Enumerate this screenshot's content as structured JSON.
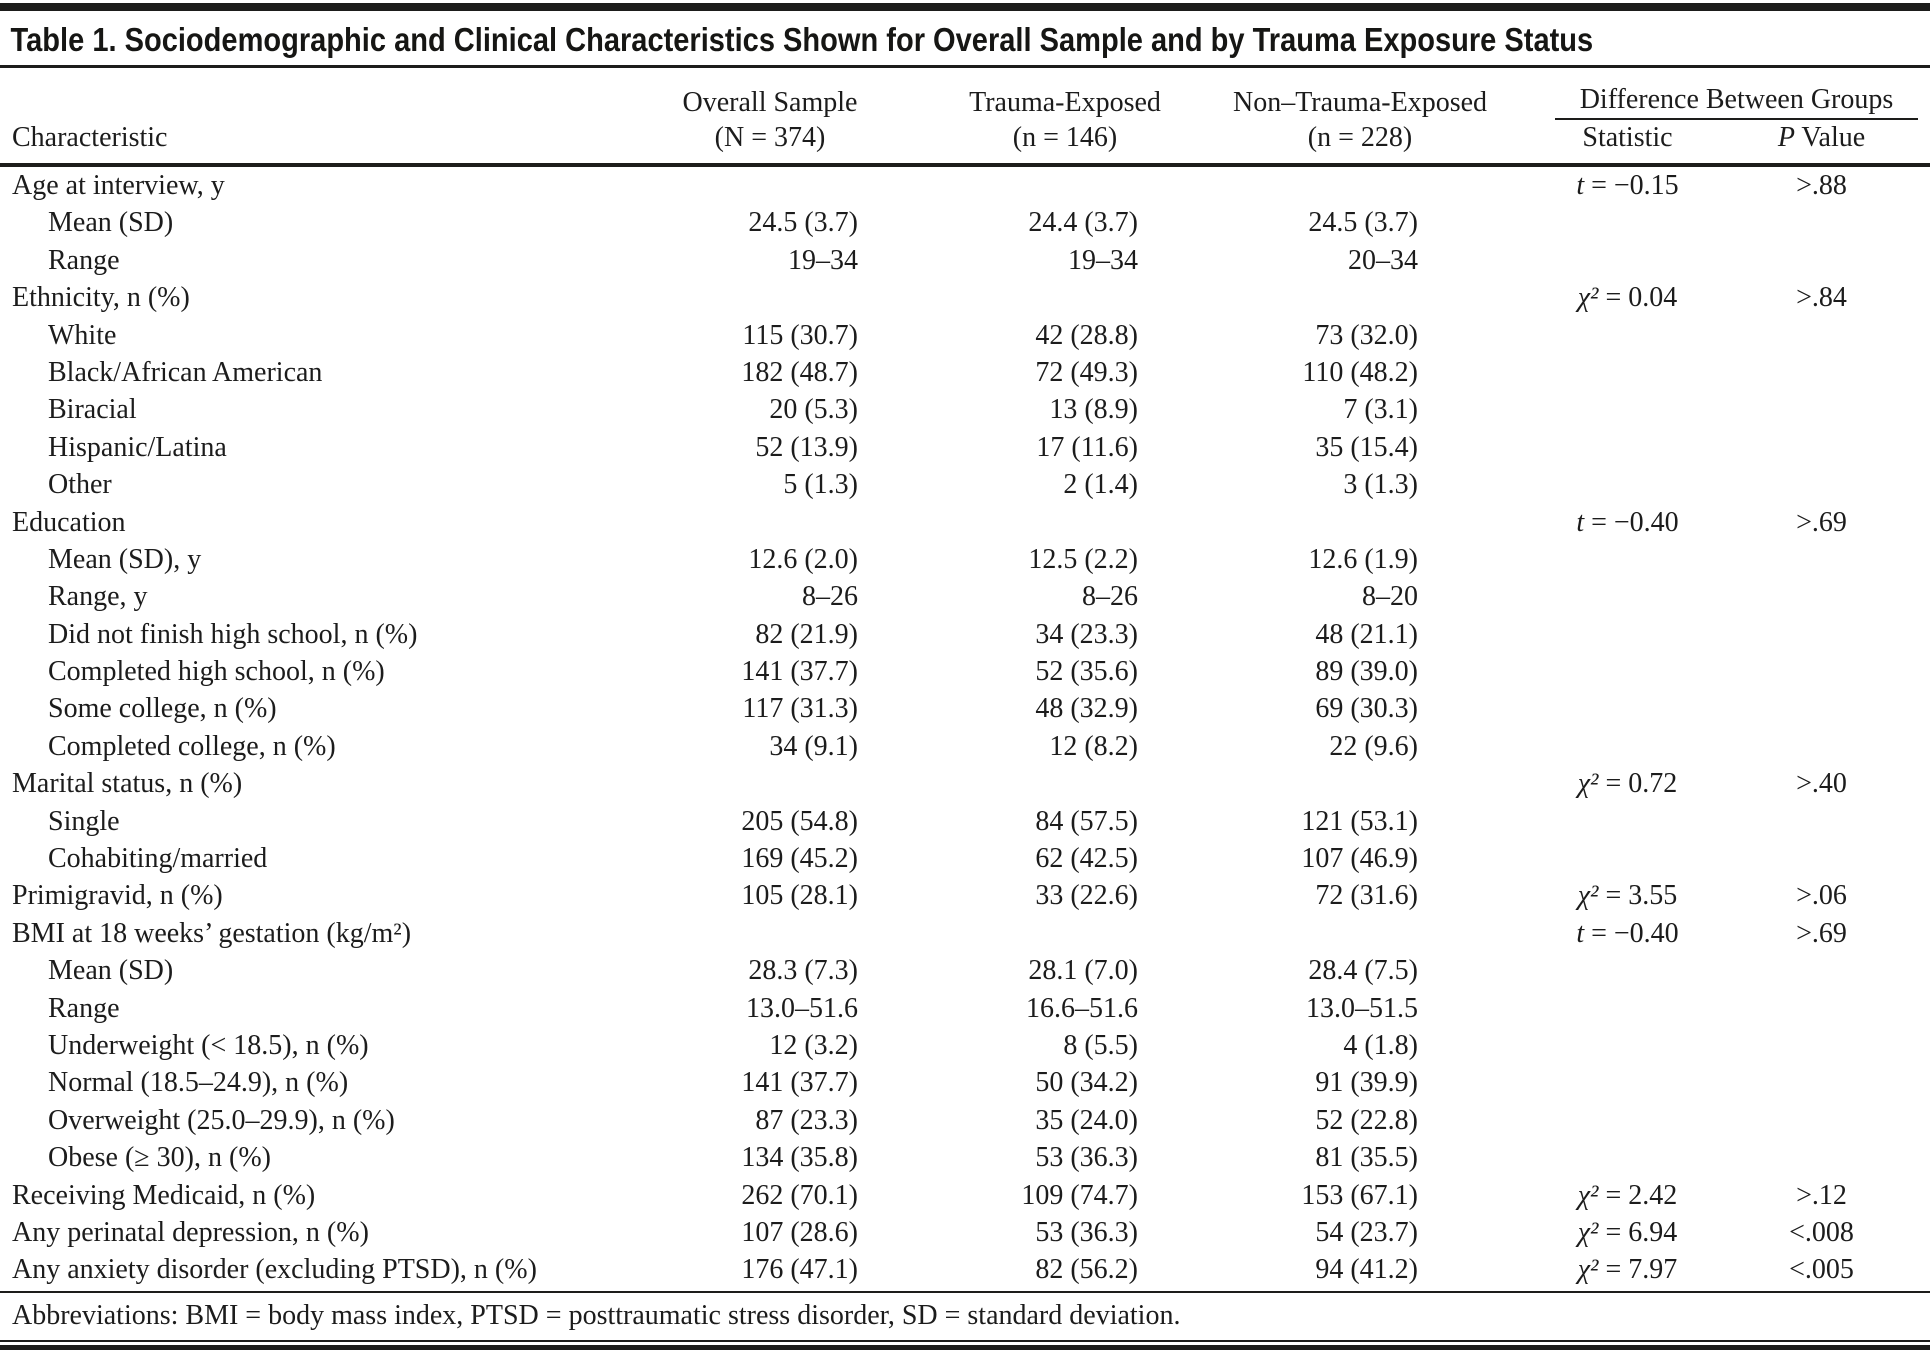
{
  "title": "Table 1. Sociodemographic and Clinical Characteristics Shown for Overall Sample and by Trauma Exposure Status",
  "header": {
    "characteristic": "Characteristic",
    "overall_line1": "Overall Sample",
    "overall_line2": "(N = 374)",
    "trauma_line1": "Trauma-Exposed",
    "trauma_line2": "(n = 146)",
    "nontrauma_line1": "Non–Trauma-Exposed",
    "nontrauma_line2": "(n = 228)",
    "diff": "Difference Between Groups",
    "statistic": "Statistic",
    "pvalue_p": "P",
    "pvalue_rest": " Value"
  },
  "table": {
    "rows": [
      {
        "label": "Age at interview, y",
        "indent": 0,
        "overall": "",
        "trauma": "",
        "nontrauma": "",
        "stat_sym": "t",
        "stat_val": "−0.15",
        "p": ">.88"
      },
      {
        "label": "Mean (SD)",
        "indent": 1,
        "overall": "24.5 (3.7)",
        "trauma": "24.4 (3.7)",
        "nontrauma": "24.5 (3.7)",
        "stat_sym": "",
        "stat_val": "",
        "p": ""
      },
      {
        "label": "Range",
        "indent": 1,
        "overall": "19–34",
        "trauma": "19–34",
        "nontrauma": "20–34",
        "stat_sym": "",
        "stat_val": "",
        "p": ""
      },
      {
        "label": "Ethnicity, n (%)",
        "indent": 0,
        "overall": "",
        "trauma": "",
        "nontrauma": "",
        "stat_sym": "χ²",
        "stat_val": "0.04",
        "p": ">.84"
      },
      {
        "label": "White",
        "indent": 1,
        "overall": "115 (30.7)",
        "trauma": "42 (28.8)",
        "nontrauma": "73 (32.0)",
        "stat_sym": "",
        "stat_val": "",
        "p": ""
      },
      {
        "label": "Black/African American",
        "indent": 1,
        "overall": "182 (48.7)",
        "trauma": "72 (49.3)",
        "nontrauma": "110 (48.2)",
        "stat_sym": "",
        "stat_val": "",
        "p": ""
      },
      {
        "label": "Biracial",
        "indent": 1,
        "overall": "20 (5.3)",
        "trauma": "13 (8.9)",
        "nontrauma": "7 (3.1)",
        "stat_sym": "",
        "stat_val": "",
        "p": ""
      },
      {
        "label": "Hispanic/Latina",
        "indent": 1,
        "overall": "52 (13.9)",
        "trauma": "17 (11.6)",
        "nontrauma": "35 (15.4)",
        "stat_sym": "",
        "stat_val": "",
        "p": ""
      },
      {
        "label": "Other",
        "indent": 1,
        "overall": "5 (1.3)",
        "trauma": "2 (1.4)",
        "nontrauma": "3 (1.3)",
        "stat_sym": "",
        "stat_val": "",
        "p": ""
      },
      {
        "label": "Education",
        "indent": 0,
        "overall": "",
        "trauma": "",
        "nontrauma": "",
        "stat_sym": "t",
        "stat_val": "−0.40",
        "p": ">.69"
      },
      {
        "label": "Mean (SD), y",
        "indent": 1,
        "overall": "12.6 (2.0)",
        "trauma": "12.5 (2.2)",
        "nontrauma": "12.6 (1.9)",
        "stat_sym": "",
        "stat_val": "",
        "p": ""
      },
      {
        "label": "Range, y",
        "indent": 1,
        "overall": "8–26",
        "trauma": "8–26",
        "nontrauma": "8–20",
        "stat_sym": "",
        "stat_val": "",
        "p": ""
      },
      {
        "label": "Did not finish high school, n (%)",
        "indent": 1,
        "overall": "82 (21.9)",
        "trauma": "34 (23.3)",
        "nontrauma": "48 (21.1)",
        "stat_sym": "",
        "stat_val": "",
        "p": ""
      },
      {
        "label": "Completed high school, n (%)",
        "indent": 1,
        "overall": "141 (37.7)",
        "trauma": "52 (35.6)",
        "nontrauma": "89 (39.0)",
        "stat_sym": "",
        "stat_val": "",
        "p": ""
      },
      {
        "label": "Some college, n (%)",
        "indent": 1,
        "overall": "117 (31.3)",
        "trauma": "48 (32.9)",
        "nontrauma": "69 (30.3)",
        "stat_sym": "",
        "stat_val": "",
        "p": ""
      },
      {
        "label": "Completed college, n (%)",
        "indent": 1,
        "overall": "34 (9.1)",
        "trauma": "12 (8.2)",
        "nontrauma": "22 (9.6)",
        "stat_sym": "",
        "stat_val": "",
        "p": ""
      },
      {
        "label": "Marital status, n (%)",
        "indent": 0,
        "overall": "",
        "trauma": "",
        "nontrauma": "",
        "stat_sym": "χ²",
        "stat_val": "0.72",
        "p": ">.40"
      },
      {
        "label": "Single",
        "indent": 1,
        "overall": "205 (54.8)",
        "trauma": "84 (57.5)",
        "nontrauma": "121 (53.1)",
        "stat_sym": "",
        "stat_val": "",
        "p": ""
      },
      {
        "label": "Cohabiting/married",
        "indent": 1,
        "overall": "169 (45.2)",
        "trauma": "62 (42.5)",
        "nontrauma": "107 (46.9)",
        "stat_sym": "",
        "stat_val": "",
        "p": ""
      },
      {
        "label": "Primigravid, n (%)",
        "indent": 0,
        "overall": "105 (28.1)",
        "trauma": "33 (22.6)",
        "nontrauma": "72 (31.6)",
        "stat_sym": "χ²",
        "stat_val": "3.55",
        "p": ">.06"
      },
      {
        "label": "BMI at 18 weeks’ gestation (kg/m²)",
        "indent": 0,
        "overall": "",
        "trauma": "",
        "nontrauma": "",
        "stat_sym": "t",
        "stat_val": "−0.40",
        "p": ">.69"
      },
      {
        "label": "Mean (SD)",
        "indent": 1,
        "overall": "28.3 (7.3)",
        "trauma": "28.1 (7.0)",
        "nontrauma": "28.4 (7.5)",
        "stat_sym": "",
        "stat_val": "",
        "p": ""
      },
      {
        "label": "Range",
        "indent": 1,
        "overall": "13.0–51.6",
        "trauma": "16.6–51.6",
        "nontrauma": "13.0–51.5",
        "stat_sym": "",
        "stat_val": "",
        "p": ""
      },
      {
        "label": "Underweight (< 18.5), n (%)",
        "indent": 1,
        "overall": "12 (3.2)",
        "trauma": "8 (5.5)",
        "nontrauma": "4 (1.8)",
        "stat_sym": "",
        "stat_val": "",
        "p": ""
      },
      {
        "label": "Normal (18.5–24.9), n (%)",
        "indent": 1,
        "overall": "141 (37.7)",
        "trauma": "50 (34.2)",
        "nontrauma": "91 (39.9)",
        "stat_sym": "",
        "stat_val": "",
        "p": ""
      },
      {
        "label": "Overweight (25.0–29.9), n (%)",
        "indent": 1,
        "overall": "87 (23.3)",
        "trauma": "35 (24.0)",
        "nontrauma": "52 (22.8)",
        "stat_sym": "",
        "stat_val": "",
        "p": ""
      },
      {
        "label": "Obese (≥ 30), n (%)",
        "indent": 1,
        "overall": "134 (35.8)",
        "trauma": "53 (36.3)",
        "nontrauma": "81 (35.5)",
        "stat_sym": "",
        "stat_val": "",
        "p": ""
      },
      {
        "label": "Receiving Medicaid, n (%)",
        "indent": 0,
        "overall": "262 (70.1)",
        "trauma": "109 (74.7)",
        "nontrauma": "153 (67.1)",
        "stat_sym": "χ²",
        "stat_val": "2.42",
        "p": ">.12"
      },
      {
        "label": "Any perinatal depression, n (%)",
        "indent": 0,
        "overall": "107 (28.6)",
        "trauma": "53 (36.3)",
        "nontrauma": "54 (23.7)",
        "stat_sym": "χ²",
        "stat_val": "6.94",
        "p": "<.008"
      },
      {
        "label": "Any anxiety disorder (excluding PTSD), n (%)",
        "indent": 0,
        "overall": "176 (47.1)",
        "trauma": "82 (56.2)",
        "nontrauma": "94 (41.2)",
        "stat_sym": "χ²",
        "stat_val": "7.97",
        "p": "<.005"
      }
    ]
  },
  "footer": "Abbreviations: BMI = body mass index, PTSD = posttraumatic stress disorder, SD = standard deviation."
}
